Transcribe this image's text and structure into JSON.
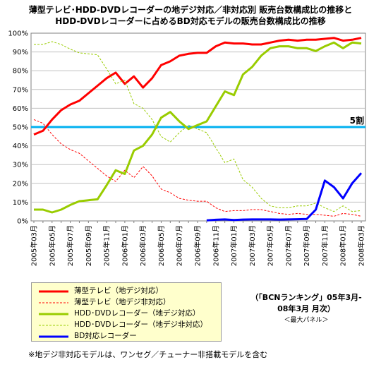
{
  "title": {
    "line1": "薄型テレビ･HDD-DVDレコーダーの地デジ対応／非対応別 販売台数構成比の推移と",
    "line2": "HDD-DVDレコーダーに占めるBD対応モデルの販売台数構成比の推移"
  },
  "source": {
    "line1": "（「BCNランキング」05年3月-",
    "line2": "08年3月 月次）",
    "line3": "＜最大パネル＞"
  },
  "note": "※地デジ非対応モデルは、ワンセグ／チューナー非搭載モデルを含む",
  "chart_data": {
    "type": "line",
    "ylim": [
      0,
      100
    ],
    "yticks": [
      0,
      10,
      20,
      30,
      40,
      50,
      60,
      70,
      80,
      90,
      100
    ],
    "ytick_labels": [
      "0%",
      "10%",
      "20%",
      "30%",
      "40%",
      "50%",
      "60%",
      "70%",
      "80%",
      "90%",
      "100%"
    ],
    "x": [
      "2005年03月",
      "2005年04月",
      "2005年05月",
      "2005年06月",
      "2005年07月",
      "2005年08月",
      "2005年09月",
      "2005年10月",
      "2005年11月",
      "2005年12月",
      "2006年01月",
      "2006年02月",
      "2006年03月",
      "2006年04月",
      "2006年05月",
      "2006年06月",
      "2006年07月",
      "2006年08月",
      "2006年09月",
      "2006年10月",
      "2006年11月",
      "2006年12月",
      "2007年01月",
      "2007年02月",
      "2007年03月",
      "2007年04月",
      "2007年05月",
      "2007年06月",
      "2007年07月",
      "2007年08月",
      "2007年09月",
      "2007年10月",
      "2007年11月",
      "2007年12月",
      "2008年01月",
      "2008年02月",
      "2008年03月"
    ],
    "xtick_labels": [
      "2005年03月",
      "2005年05月",
      "2005年07月",
      "2005年09月",
      "2005年11月",
      "2006年01月",
      "2006年03月",
      "2006年05月",
      "2006年07月",
      "2006年09月",
      "2006年11月",
      "2007年01月",
      "2007年03月",
      "2007年05月",
      "2007年07月",
      "2007年09月",
      "2007年11月",
      "2008年01月",
      "2008年03月"
    ],
    "reference_line": {
      "value": 50,
      "label": "5割",
      "color": "#00b0f0"
    },
    "series": [
      {
        "name": "薄型テレビ（地デジ対応）",
        "color": "#ff0000",
        "style": "solid",
        "values": [
          46,
          48,
          54,
          59,
          62,
          64,
          68,
          72,
          76,
          79,
          73,
          77,
          71,
          76,
          83,
          85,
          88,
          89,
          89.5,
          89.5,
          93,
          95,
          94.5,
          94.5,
          94,
          94,
          95,
          96,
          96.5,
          96,
          96.5,
          96.5,
          97,
          97.5,
          96,
          96.5,
          97.5
        ]
      },
      {
        "name": "薄型テレビ（地デジ非対応）",
        "color": "#ff0000",
        "style": "dashed",
        "values": [
          54,
          52,
          46,
          41,
          38,
          36,
          32,
          28,
          24,
          21,
          27,
          23,
          29,
          24,
          17,
          15,
          12,
          11,
          10.5,
          10.5,
          7,
          5,
          5.5,
          5.5,
          6,
          6,
          5,
          4,
          3.5,
          4,
          3.5,
          3.5,
          3,
          2.5,
          4,
          3.5,
          2.5
        ]
      },
      {
        "name": "HDD･DVDレコーダー（地デジ対応）",
        "color": "#99cc00",
        "style": "solid",
        "values": [
          6,
          6,
          4.5,
          6,
          8.5,
          10.5,
          11,
          11.5,
          19,
          27,
          25,
          37.5,
          40,
          46,
          55,
          58,
          53,
          49,
          51,
          53,
          61,
          69,
          67,
          78,
          82,
          88,
          92,
          93,
          93,
          92,
          92,
          90.5,
          93,
          95,
          92,
          95,
          94.5
        ]
      },
      {
        "name": "HDD･DVDレコーダー（地デジ非対応）",
        "color": "#99cc00",
        "style": "dashed",
        "values": [
          94,
          94,
          95.5,
          94,
          91.5,
          89.5,
          89,
          88.5,
          81,
          73,
          75,
          62.5,
          60,
          54,
          45,
          42,
          47,
          51,
          49,
          47,
          39,
          31,
          33,
          22,
          18,
          12,
          8,
          7,
          7,
          8,
          8,
          9.5,
          7,
          5,
          8,
          5,
          5.5
        ]
      },
      {
        "name": "BD対応レコーダー",
        "color": "#0000ff",
        "style": "solid",
        "values": [
          null,
          null,
          null,
          null,
          null,
          null,
          null,
          null,
          null,
          null,
          null,
          null,
          null,
          null,
          null,
          null,
          null,
          null,
          null,
          0.3,
          0.6,
          0.8,
          0.5,
          0.7,
          0.8,
          0.8,
          0.8,
          0.7,
          0.8,
          0.9,
          1,
          6,
          21.5,
          18,
          12,
          20,
          25.5
        ]
      }
    ]
  }
}
